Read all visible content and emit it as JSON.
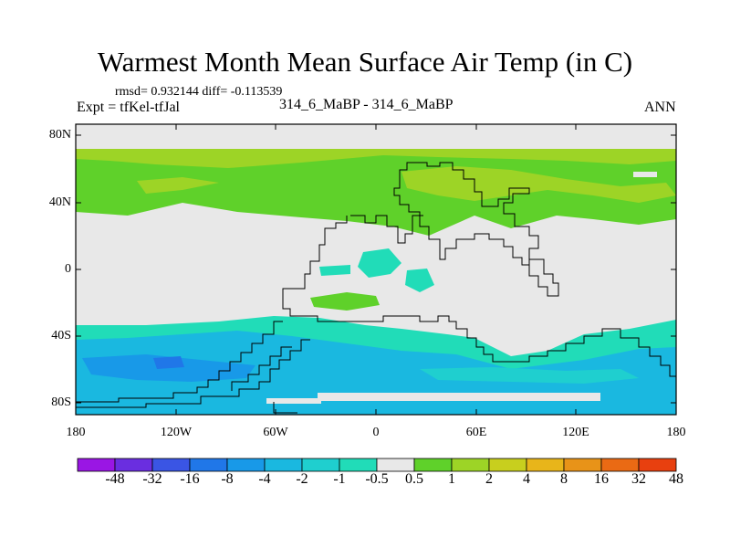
{
  "title": "Warmest Month Mean Surface Air Temp (in C)",
  "stats": "rmsd= 0.932144 diff= -0.113539",
  "experiment": "Expt = tfKel-tfJal",
  "subtitle": "314_6_MaBP - 314_6_MaBP",
  "season": "ANN",
  "axes": {
    "lat_labels": [
      "80N",
      "40N",
      "0",
      "40S",
      "80S"
    ],
    "lon_labels": [
      "180",
      "120W",
      "60W",
      "0",
      "60E",
      "120E",
      "180"
    ]
  },
  "colorbar": {
    "labels": [
      "-48",
      "-32",
      "-16",
      "-8",
      "-4",
      "-2",
      "-1",
      "-0.5",
      "0.5",
      "1",
      "2",
      "4",
      "8",
      "16",
      "32",
      "48"
    ],
    "colors": [
      "#9a16e4",
      "#6a2ee0",
      "#3a55e4",
      "#2077e8",
      "#1899e8",
      "#1ab8e0",
      "#1fcfcf",
      "#21dcb8",
      "#e8e8e8",
      "#5fd12a",
      "#9dd426",
      "#c8cf1e",
      "#e8b51a",
      "#e89318",
      "#ea6a14",
      "#e8400f"
    ]
  },
  "chart_data": {
    "type": "heatmap",
    "title": "Warmest Month Mean Surface Air Temp (in C)",
    "xlabel": "",
    "ylabel": "",
    "xlim": [
      -180,
      180
    ],
    "ylim": [
      -90,
      90
    ],
    "x_ticks": [
      "180",
      "120W",
      "60W",
      "0",
      "60E",
      "120E",
      "180"
    ],
    "y_ticks": [
      "80N",
      "40N",
      "0",
      "40S",
      "80S"
    ],
    "levels": [
      -48,
      -32,
      -16,
      -8,
      -4,
      -2,
      -1,
      -0.5,
      0.5,
      1,
      2,
      4,
      8,
      16,
      32,
      48
    ],
    "background_class": "-0.5 to 0.5",
    "regions": [
      {
        "area": "northern high latitudes",
        "value_range": "0.5 to 2"
      },
      {
        "area": "tropics",
        "value_range": "-0.5 to 0.5"
      },
      {
        "area": "southern mid/high latitudes",
        "value_range": "-8 to -0.5"
      }
    ]
  }
}
